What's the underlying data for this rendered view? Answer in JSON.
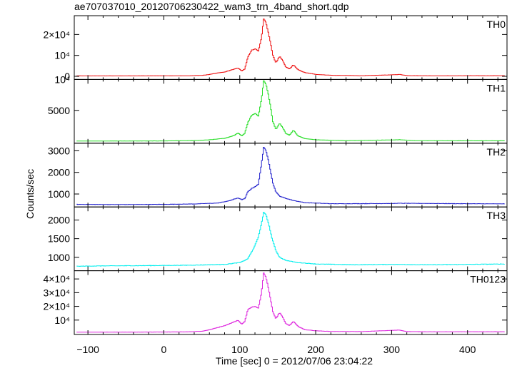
{
  "chart_data": {
    "type": "line",
    "title": "ae707037010_20120706230422_wam3_trn_4band_short.qdp",
    "xlabel": "Time [sec] 0 = 2012/07/06 23:04:22",
    "ylabel": "Counts/sec",
    "xlim": [
      -118,
      452
    ],
    "xticks": [
      -100,
      0,
      100,
      200,
      300,
      400
    ],
    "xtick_labels": [
      "−100",
      "0",
      "100",
      "200",
      "300",
      "400"
    ],
    "panels": [
      {
        "name": "TH0",
        "color": "#ee1111",
        "ylim": [
          -1500,
          29000
        ],
        "yticks": [
          0,
          10000,
          20000
        ],
        "ytick_labels": [
          "0",
          "10⁴",
          "2×10⁴"
        ],
        "points": [
          [
            -115,
            200
          ],
          [
            -60,
            200
          ],
          [
            0,
            230
          ],
          [
            30,
            250
          ],
          [
            50,
            450
          ],
          [
            60,
            900
          ],
          [
            70,
            1600
          ],
          [
            80,
            2100
          ],
          [
            90,
            3200
          ],
          [
            97,
            4000
          ],
          [
            102,
            2600
          ],
          [
            106,
            3500
          ],
          [
            110,
            9000
          ],
          [
            115,
            12500
          ],
          [
            120,
            13200
          ],
          [
            124,
            12000
          ],
          [
            128,
            18500
          ],
          [
            131,
            27500
          ],
          [
            134,
            25500
          ],
          [
            137,
            21000
          ],
          [
            140,
            16000
          ],
          [
            143,
            10000
          ],
          [
            147,
            6500
          ],
          [
            152,
            9500
          ],
          [
            156,
            7500
          ],
          [
            160,
            4500
          ],
          [
            165,
            3500
          ],
          [
            170,
            5500
          ],
          [
            176,
            3200
          ],
          [
            185,
            1800
          ],
          [
            200,
            900
          ],
          [
            220,
            500
          ],
          [
            260,
            300
          ],
          [
            300,
            700
          ],
          [
            310,
            900
          ],
          [
            320,
            350
          ],
          [
            360,
            250
          ],
          [
            400,
            300
          ],
          [
            440,
            300
          ],
          [
            448,
            300
          ]
        ]
      },
      {
        "name": "TH1",
        "color": "#22dd22",
        "ylim": [
          -300,
          10000
        ],
        "yticks": [
          5000,
          10000
        ],
        "ytick_labels": [
          "5000",
          "10⁴"
        ],
        "points": [
          [
            -115,
            50
          ],
          [
            -60,
            60
          ],
          [
            0,
            70
          ],
          [
            40,
            130
          ],
          [
            60,
            250
          ],
          [
            80,
            500
          ],
          [
            92,
            950
          ],
          [
            97,
            1350
          ],
          [
            102,
            900
          ],
          [
            106,
            1300
          ],
          [
            110,
            3000
          ],
          [
            115,
            4200
          ],
          [
            120,
            4500
          ],
          [
            124,
            4100
          ],
          [
            128,
            6800
          ],
          [
            131,
            9800
          ],
          [
            134,
            9200
          ],
          [
            137,
            7600
          ],
          [
            140,
            5600
          ],
          [
            143,
            3200
          ],
          [
            147,
            1900
          ],
          [
            152,
            2900
          ],
          [
            156,
            2200
          ],
          [
            160,
            1300
          ],
          [
            165,
            1000
          ],
          [
            170,
            1800
          ],
          [
            176,
            900
          ],
          [
            185,
            450
          ],
          [
            200,
            250
          ],
          [
            240,
            120
          ],
          [
            300,
            230
          ],
          [
            310,
            260
          ],
          [
            330,
            110
          ],
          [
            400,
            90
          ],
          [
            448,
            90
          ]
        ]
      },
      {
        "name": "TH2",
        "color": "#2222cc",
        "ylim": [
          400,
          3350
        ],
        "yticks": [
          1000,
          2000,
          3000
        ],
        "ytick_labels": [
          "1000",
          "2000",
          "3000"
        ],
        "points": [
          [
            -115,
            520
          ],
          [
            -60,
            510
          ],
          [
            0,
            520
          ],
          [
            40,
            540
          ],
          [
            70,
            580
          ],
          [
            85,
            680
          ],
          [
            92,
            760
          ],
          [
            97,
            820
          ],
          [
            102,
            740
          ],
          [
            106,
            780
          ],
          [
            110,
            1100
          ],
          [
            115,
            1250
          ],
          [
            120,
            1350
          ],
          [
            124,
            1450
          ],
          [
            128,
            2400
          ],
          [
            131,
            3150
          ],
          [
            134,
            3000
          ],
          [
            137,
            2600
          ],
          [
            140,
            2050
          ],
          [
            143,
            1500
          ],
          [
            147,
            1100
          ],
          [
            152,
            900
          ],
          [
            160,
            800
          ],
          [
            170,
            700
          ],
          [
            185,
            600
          ],
          [
            220,
            550
          ],
          [
            300,
            560
          ],
          [
            310,
            570
          ],
          [
            400,
            550
          ],
          [
            448,
            545
          ]
        ]
      },
      {
        "name": "TH3",
        "color": "#00eeee",
        "ylim": [
          640,
          2350
        ],
        "yticks": [
          1000,
          1500,
          2000
        ],
        "ytick_labels": [
          "1000",
          "1500",
          "2000"
        ],
        "points": [
          [
            -115,
            760
          ],
          [
            -80,
            770
          ],
          [
            -40,
            775
          ],
          [
            0,
            780
          ],
          [
            40,
            790
          ],
          [
            80,
            810
          ],
          [
            100,
            860
          ],
          [
            110,
            960
          ],
          [
            118,
            1250
          ],
          [
            124,
            1550
          ],
          [
            128,
            1900
          ],
          [
            131,
            2200
          ],
          [
            134,
            2150
          ],
          [
            138,
            1850
          ],
          [
            142,
            1500
          ],
          [
            147,
            1180
          ],
          [
            152,
            1000
          ],
          [
            160,
            920
          ],
          [
            175,
            860
          ],
          [
            200,
            820
          ],
          [
            250,
            800
          ],
          [
            300,
            810
          ],
          [
            350,
            800
          ],
          [
            400,
            810
          ],
          [
            448,
            820
          ]
        ]
      },
      {
        "name": "TH0123",
        "color": "#dd22dd",
        "ylim": [
          -500,
          46000
        ],
        "yticks": [
          10000,
          20000,
          30000,
          40000
        ],
        "ytick_labels": [
          "10⁴",
          "2×10⁴",
          "3×10⁴",
          "4×10⁴"
        ],
        "points": [
          [
            -115,
            1200
          ],
          [
            -60,
            1200
          ],
          [
            0,
            1300
          ],
          [
            30,
            1400
          ],
          [
            50,
            1900
          ],
          [
            60,
            3000
          ],
          [
            70,
            4500
          ],
          [
            80,
            6000
          ],
          [
            90,
            8200
          ],
          [
            97,
            9800
          ],
          [
            102,
            7000
          ],
          [
            106,
            9000
          ],
          [
            110,
            17500
          ],
          [
            115,
            19500
          ],
          [
            120,
            20000
          ],
          [
            124,
            18500
          ],
          [
            128,
            30000
          ],
          [
            131,
            44500
          ],
          [
            134,
            41000
          ],
          [
            137,
            34000
          ],
          [
            140,
            25000
          ],
          [
            143,
            16000
          ],
          [
            147,
            11000
          ],
          [
            152,
            15500
          ],
          [
            156,
            12000
          ],
          [
            160,
            7500
          ],
          [
            165,
            6000
          ],
          [
            170,
            9000
          ],
          [
            176,
            5500
          ],
          [
            185,
            3000
          ],
          [
            200,
            2200
          ],
          [
            220,
            1700
          ],
          [
            260,
            1600
          ],
          [
            300,
            2500
          ],
          [
            310,
            2700
          ],
          [
            320,
            1600
          ],
          [
            360,
            1450
          ],
          [
            400,
            1500
          ],
          [
            448,
            1500
          ]
        ]
      }
    ]
  }
}
